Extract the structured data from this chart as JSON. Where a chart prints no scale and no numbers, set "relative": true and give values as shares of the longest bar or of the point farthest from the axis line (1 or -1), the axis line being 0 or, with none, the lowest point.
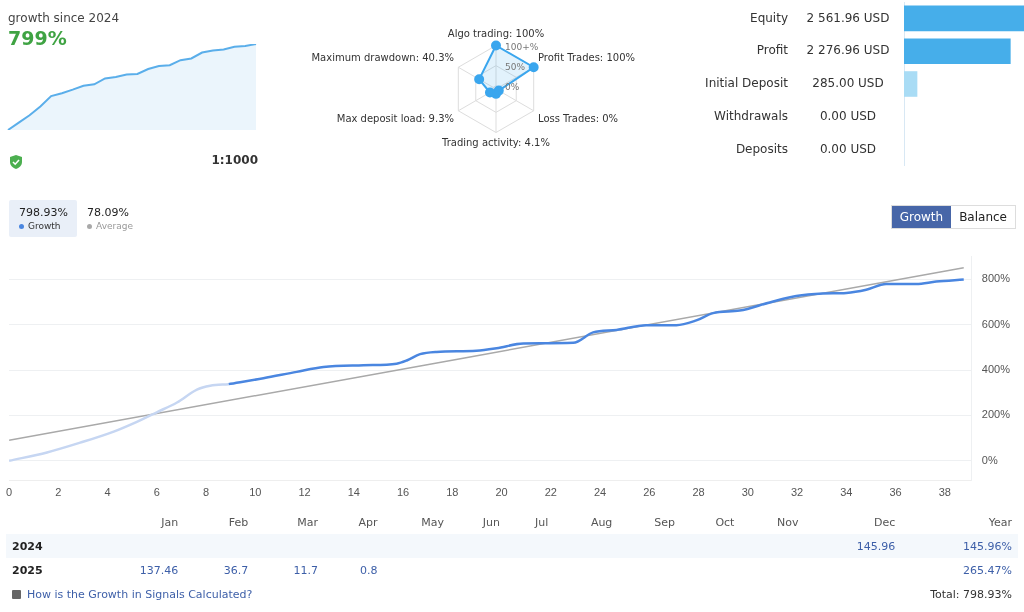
{
  "chart_data": [
    {
      "type": "area",
      "title": "growth since 2024",
      "subtitle": "799%",
      "relative": true,
      "color": "#5aaeea",
      "categories": [
        null,
        null,
        null,
        null,
        null,
        null,
        null,
        null,
        null,
        null,
        null,
        null,
        null,
        null,
        null,
        null,
        null,
        null,
        null,
        null,
        null,
        null,
        null,
        null
      ],
      "values": [
        0,
        0.086,
        0.171,
        0.274,
        0.394,
        0.428,
        0.469,
        0.514,
        0.531,
        0.6,
        0.616,
        0.644,
        0.651,
        0.709,
        0.743,
        0.753,
        0.812,
        0.832,
        0.901,
        0.925,
        0.935,
        0.969,
        0.976,
        1
      ],
      "annotations": [
        "1:1000"
      ],
      "grid": false,
      "legend": false,
      "tick_labels": false
    },
    {
      "type": "radar",
      "categories": [
        "Algo trading: 100%",
        "Profit Trades: 100%",
        "Loss Trades: 0%",
        "Trading activity: 4.1%",
        "Max deposit load: 9.3%",
        "Maximum drawdown: 40.3%"
      ],
      "series": [
        {
          "color": "#3aa6ee",
          "values": [
            100,
            100,
            0,
            4.1,
            9.3,
            40.3
          ]
        }
      ],
      "ylim": [
        -8,
        100
      ],
      "yticks": [
        {
          "value": 0,
          "label": "0%"
        },
        {
          "value": 50,
          "label": "50%"
        },
        {
          "value": 100,
          "label": "100+%"
        }
      ],
      "marker": "circle",
      "legend": false,
      "grid": true
    },
    {
      "type": "bar",
      "orientation": "horizontal",
      "categories": [
        "Equity",
        "Profit",
        "Initial Deposit",
        "Withdrawals",
        "Deposits"
      ],
      "values": [
        2561.96,
        2276.96,
        285,
        0,
        0
      ],
      "colors": [
        "#46aeea",
        "#46aeea",
        "#a9dcf5",
        "#a9dcf5",
        "#a9dcf5"
      ],
      "value_labels": [
        "2 561.96 USD",
        "2 276.96 USD",
        "285.00 USD",
        "0.00 USD",
        "0.00 USD"
      ],
      "xlim": [
        0,
        2561.96
      ],
      "tick_labels": "y",
      "grid": false,
      "legend": false
    },
    {
      "type": "line",
      "xlim": [
        0,
        39.1
      ],
      "xticks": [
        0,
        2,
        4,
        6,
        8,
        10,
        12,
        14,
        16,
        18,
        20,
        22,
        24,
        26,
        28,
        30,
        32,
        34,
        36,
        38
      ],
      "ylim": [
        -88,
        900
      ],
      "yticks": [
        {
          "value": 0,
          "label": "0%"
        },
        {
          "value": 200,
          "label": "200%"
        },
        {
          "value": 400,
          "label": "400%"
        },
        {
          "value": 600,
          "label": "600%"
        },
        {
          "value": 800,
          "label": "800%"
        }
      ],
      "grid": "y",
      "legend": "top left",
      "marker": "none",
      "line_style": "solid",
      "annotations": [
        "798.93%",
        "78.09%",
        "Growth",
        "Balance"
      ],
      "series": [
        {
          "color": "#c6d6f2",
          "x": [
            0,
            1.54,
            2.89,
            4.25,
            5.19,
            6.0,
            6.82,
            7.63,
            8.17,
            8.91
          ],
          "values": [
            0,
            37,
            80,
            129,
            172,
            214,
            257,
            314,
            331,
            338
          ]
        },
        {
          "name": "Growth",
          "color": "#4a86e0",
          "x": [
            8.91,
            10.33,
            11.68,
            12.77,
            14.39,
            15.74,
            16.15,
            16.69,
            17.36,
            18.98,
            19.8,
            20.88,
            22.91,
            23.72,
            24.67,
            25.88,
            27.1,
            27.91,
            28.59,
            29.67,
            30.89,
            31.97,
            33.05,
            34.0,
            34.81,
            35.62,
            36.84,
            37.65,
            38.77
          ],
          "values": [
            338,
            364,
            392,
            413,
            421,
            428,
            442,
            470,
            480,
            485,
            496,
            517,
            520,
            566,
            577,
            598,
            598,
            619,
            651,
            662,
            698,
            726,
            737,
            740,
            754,
            779,
            779,
            790,
            799
          ]
        },
        {
          "name": "Average",
          "color": "#a9a9a9",
          "x": [
            0,
            38.77
          ],
          "values": [
            91,
            851
          ]
        }
      ]
    },
    {
      "type": "other",
      "categories": [
        "Jan",
        "Feb",
        "Mar",
        "Apr",
        "May",
        "Jun",
        "Jul",
        "Aug",
        "Sep",
        "Oct",
        "Nov",
        "Dec",
        "Year"
      ],
      "y_categories": [
        "2024",
        "2025"
      ],
      "cell_labels": [
        [
          null,
          null,
          null,
          null,
          null,
          null,
          null,
          null,
          null,
          null,
          null,
          "145.96",
          "145.96%"
        ],
        [
          "137.46",
          "36.7",
          "11.7",
          "0.8",
          null,
          null,
          null,
          null,
          null,
          null,
          null,
          null,
          "265.47%"
        ]
      ],
      "annotations": [
        "How is the Growth in Signals Calculated?",
        "Total: 798.93%"
      ]
    }
  ]
}
